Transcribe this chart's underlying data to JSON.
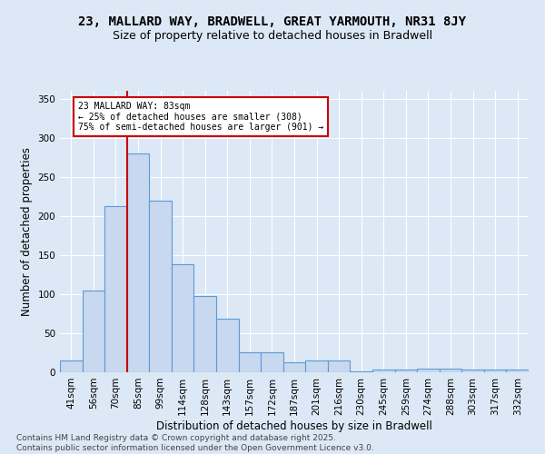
{
  "title1": "23, MALLARD WAY, BRADWELL, GREAT YARMOUTH, NR31 8JY",
  "title2": "Size of property relative to detached houses in Bradwell",
  "xlabel": "Distribution of detached houses by size in Bradwell",
  "ylabel": "Number of detached properties",
  "categories": [
    "41sqm",
    "56sqm",
    "70sqm",
    "85sqm",
    "99sqm",
    "114sqm",
    "128sqm",
    "143sqm",
    "157sqm",
    "172sqm",
    "187sqm",
    "201sqm",
    "216sqm",
    "230sqm",
    "245sqm",
    "259sqm",
    "274sqm",
    "288sqm",
    "303sqm",
    "317sqm",
    "332sqm"
  ],
  "values": [
    15,
    105,
    213,
    280,
    220,
    138,
    97,
    68,
    26,
    25,
    13,
    15,
    15,
    1,
    4,
    3,
    5,
    5,
    3,
    4,
    3
  ],
  "bar_color": "#c8d8ee",
  "bar_edge_color": "#5b9bd5",
  "background_color": "#dce8f5",
  "grid_color": "#ffffff",
  "vline_color": "#cc0000",
  "annotation_text": "23 MALLARD WAY: 83sqm\n← 25% of detached houses are smaller (308)\n75% of semi-detached houses are larger (901) →",
  "annotation_box_color": "#cc0000",
  "ylim": [
    0,
    360
  ],
  "yticks": [
    0,
    50,
    100,
    150,
    200,
    250,
    300,
    350
  ],
  "footnote": "Contains HM Land Registry data © Crown copyright and database right 2025.\nContains public sector information licensed under the Open Government Licence v3.0.",
  "title_fontsize": 10,
  "subtitle_fontsize": 9,
  "label_fontsize": 8.5,
  "tick_fontsize": 7.5,
  "footnote_fontsize": 6.5
}
